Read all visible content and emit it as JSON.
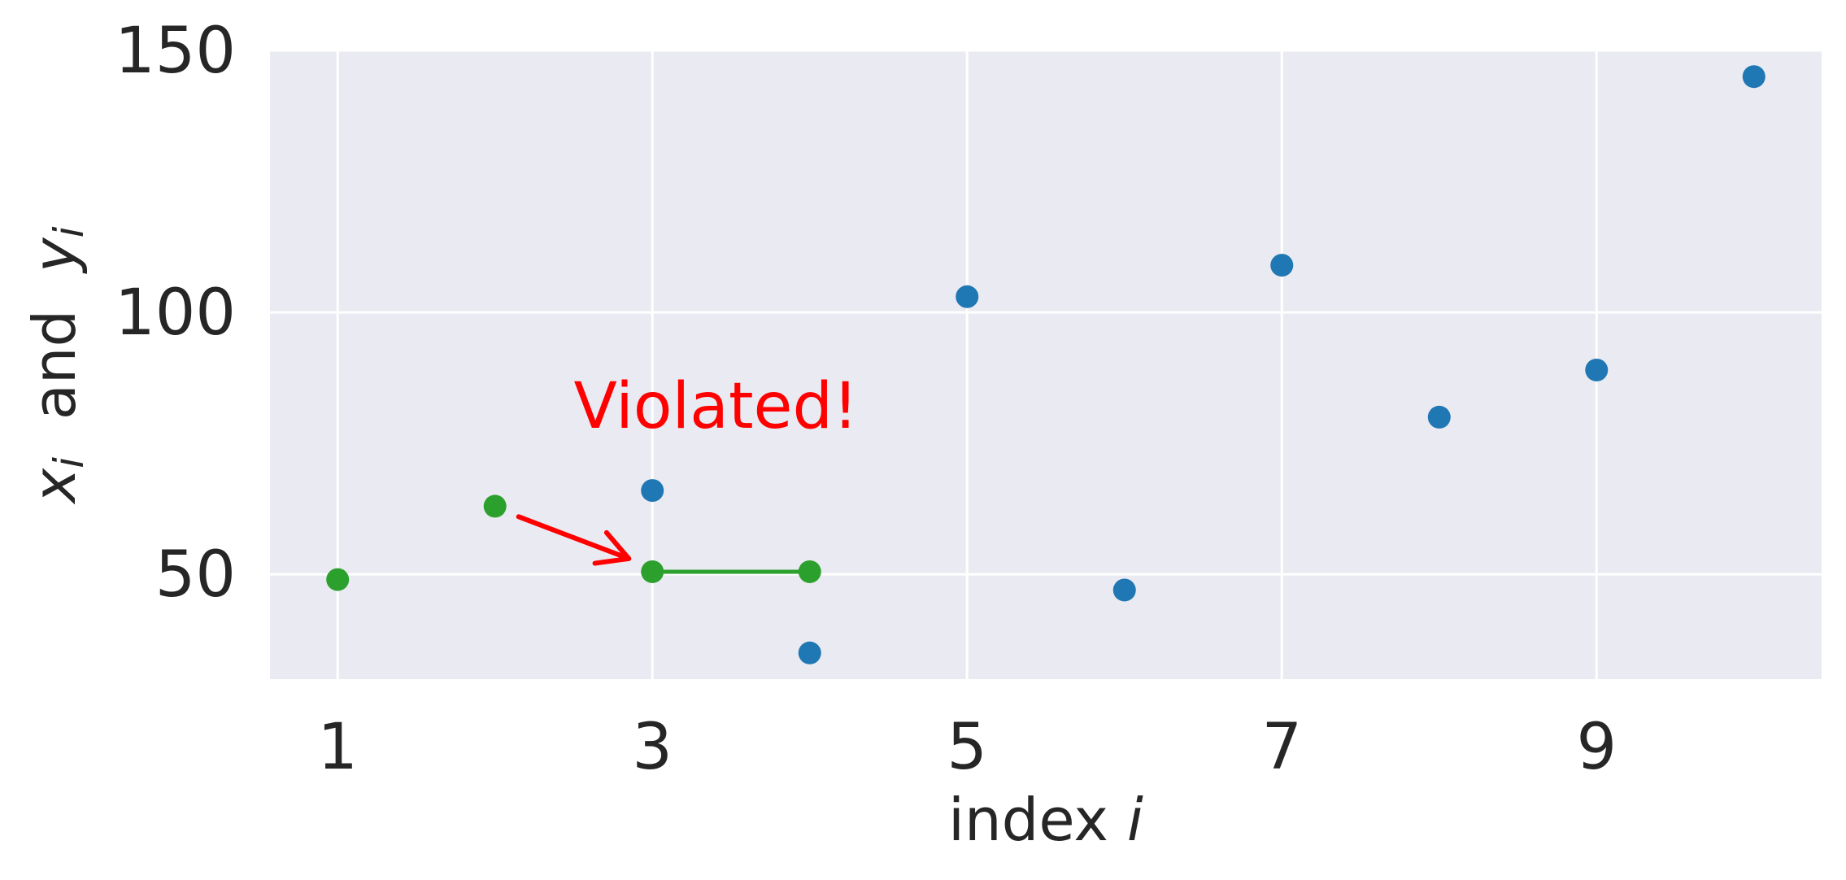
{
  "chart_data": {
    "type": "scatter",
    "title": "",
    "xlabel": {
      "text": "index ",
      "var": "i"
    },
    "ylabel": {
      "x": "x",
      "sub1": "i",
      "mid": "  and  ",
      "y": "y",
      "sub2": "i"
    },
    "xlim": [
      0.57,
      10.43
    ],
    "ylim": [
      30,
      150
    ],
    "xticks": [
      1,
      3,
      5,
      7,
      9
    ],
    "yticks": [
      50,
      100,
      150
    ],
    "grid": true,
    "colors": {
      "background": "#eaeaf2",
      "grid": "#ffffff",
      "blue": "#1f77b4",
      "green": "#2ca02c",
      "annotation": "#ff0000",
      "text": "#262626"
    },
    "series": [
      {
        "points": [
          {
            "x": 3,
            "y": 66
          },
          {
            "x": 4,
            "y": 35
          },
          {
            "x": 5,
            "y": 103
          },
          {
            "x": 6,
            "y": 47
          },
          {
            "x": 7,
            "y": 109
          },
          {
            "x": 8,
            "y": 80
          },
          {
            "x": 9,
            "y": 89
          },
          {
            "x": 10,
            "y": 145
          }
        ]
      },
      {
        "points": [
          {
            "x": 1,
            "y": 49
          },
          {
            "x": 2,
            "y": 63
          },
          {
            "x": 3,
            "y": 50.5
          },
          {
            "x": 4,
            "y": 50.5
          }
        ],
        "segment": {
          "x1": 3,
          "x2": 4,
          "y": 50.5
        }
      }
    ],
    "annotation": {
      "text": "Violated!",
      "text_x": 2.5,
      "text_y": 78,
      "arrow_from": {
        "x": 2.15,
        "y": 61
      },
      "arrow_to": {
        "x": 2.85,
        "y": 53
      }
    }
  }
}
